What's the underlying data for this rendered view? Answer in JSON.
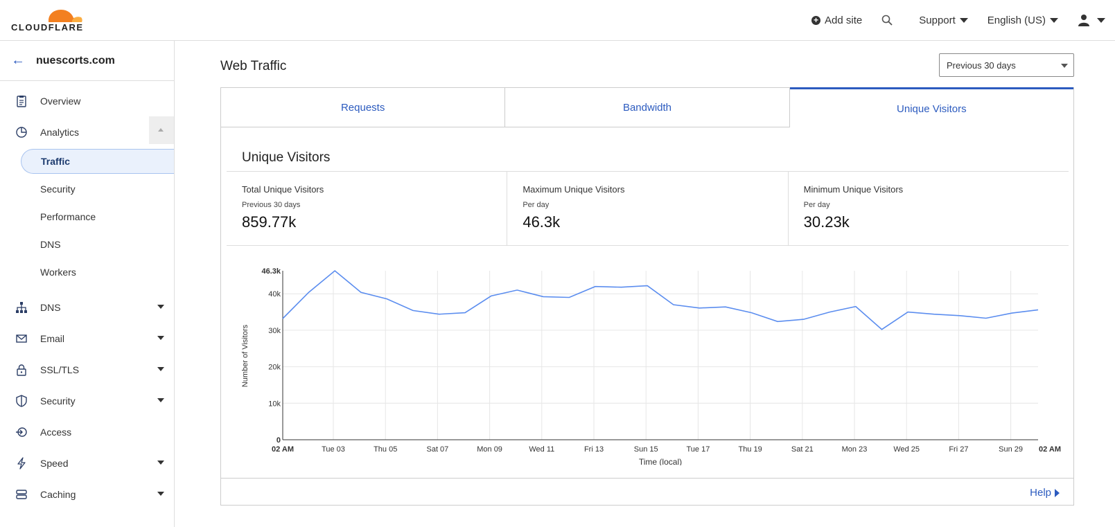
{
  "brand": {
    "logo_text": "CLOUDFLARE",
    "accent": "#f38020"
  },
  "topnav": {
    "add_site": "Add site",
    "support": "Support",
    "language": "English (US)"
  },
  "sidebar": {
    "site_name": "nuescorts.com",
    "items": [
      {
        "label": "Overview",
        "icon": "clipboard-icon"
      },
      {
        "label": "Analytics",
        "icon": "pie-chart-icon"
      },
      {
        "label": "DNS",
        "icon": "network-icon"
      },
      {
        "label": "Email",
        "icon": "envelope-icon"
      },
      {
        "label": "SSL/TLS",
        "icon": "lock-icon"
      },
      {
        "label": "Security",
        "icon": "shield-icon"
      },
      {
        "label": "Access",
        "icon": "access-icon"
      },
      {
        "label": "Speed",
        "icon": "lightning-icon"
      },
      {
        "label": "Caching",
        "icon": "drive-icon"
      }
    ],
    "analytics_sub": [
      "Traffic",
      "Security",
      "Performance",
      "DNS",
      "Workers"
    ]
  },
  "main": {
    "title": "Web Traffic",
    "range": "Previous 30 days",
    "tabs": [
      "Requests",
      "Bandwidth",
      "Unique Visitors"
    ],
    "section_title": "Unique Visitors",
    "stats": [
      {
        "label": "Total Unique Visitors",
        "sub": "Previous 30 days",
        "value": "859.77k"
      },
      {
        "label": "Maximum Unique Visitors",
        "sub": "Per day",
        "value": "46.3k"
      },
      {
        "label": "Minimum Unique Visitors",
        "sub": "Per day",
        "value": "30.23k"
      }
    ],
    "help": "Help",
    "link_color": "#2c5bbf"
  },
  "chart_data": {
    "type": "line",
    "xlabel": "Time (local)",
    "ylabel": "Number of Visitors",
    "ylim": [
      0,
      46300
    ],
    "y_ticks": [
      "0",
      "10k",
      "20k",
      "30k",
      "40k",
      "46.3k"
    ],
    "x_tick_labels": [
      "02 AM",
      "Tue 03",
      "Thu 05",
      "Sat 07",
      "Mon 09",
      "Wed 11",
      "Fri 13",
      "Sun 15",
      "Tue 17",
      "Thu 19",
      "Sat 21",
      "Mon 23",
      "Wed 25",
      "Fri 27",
      "Sun 29",
      "02 AM"
    ],
    "series": [
      {
        "color": "#5b8def",
        "values": [
          33200,
          40400,
          46300,
          40400,
          38600,
          35400,
          34400,
          34800,
          39400,
          41000,
          39200,
          39000,
          42000,
          41800,
          42200,
          37000,
          36100,
          36400,
          34800,
          32400,
          33000,
          35000,
          36500,
          30230,
          35000,
          34400,
          34000,
          33300,
          34700,
          35600
        ]
      }
    ],
    "grid": true
  }
}
